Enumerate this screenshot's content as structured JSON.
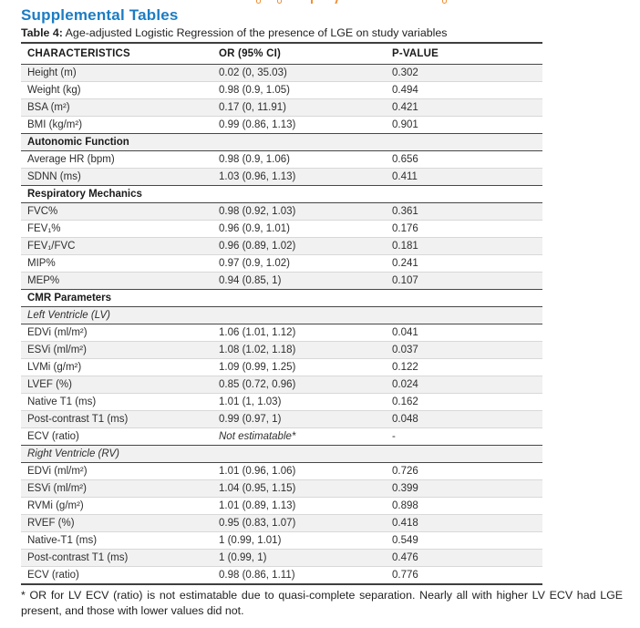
{
  "page": {
    "heading": "Supplemental Tables",
    "caption_label": "Table 4:",
    "caption_text": " Age-adjusted Logistic Regression of the presence of LGE on study variables",
    "footnote": "* OR for LV ECV (ratio) is not estimatable due to quasi-complete separation. Nearly all with higher LV ECV had LGE present, and those with lower values did not."
  },
  "table": {
    "columns": [
      "CHARACTERISTICS",
      "OR (95% CI)",
      "P-VALUE"
    ],
    "rows": [
      {
        "type": "data",
        "label": "Height (m)",
        "or": "0.02 (0, 35.03)",
        "p": "0.302"
      },
      {
        "type": "data",
        "label": "Weight (kg)",
        "or": "0.98 (0.9, 1.05)",
        "p": "0.494"
      },
      {
        "type": "data",
        "label": "BSA (m²)",
        "or": "0.17 (0, 11.91)",
        "p": "0.421"
      },
      {
        "type": "data",
        "label": "BMI (kg/m²)",
        "or": "0.99 (0.86, 1.13)",
        "p": "0.901"
      },
      {
        "type": "section",
        "label": "Autonomic Function"
      },
      {
        "type": "data",
        "label": "Average HR (bpm)",
        "or": "0.98 (0.9, 1.06)",
        "p": "0.656"
      },
      {
        "type": "data",
        "label": "SDNN (ms)",
        "or": "1.03 (0.96, 1.13)",
        "p": "0.411"
      },
      {
        "type": "section",
        "label": "Respiratory Mechanics"
      },
      {
        "type": "data",
        "label": "FVC%",
        "or": "0.98 (0.92, 1.03)",
        "p": "0.361"
      },
      {
        "type": "data",
        "label": "FEV₁%",
        "or": "0.96 (0.9, 1.01)",
        "p": "0.176"
      },
      {
        "type": "data",
        "label": "FEV₁/FVC",
        "or": "0.96 (0.89, 1.02)",
        "p": "0.181"
      },
      {
        "type": "data",
        "label": "MIP%",
        "or": "0.97 (0.9, 1.02)",
        "p": "0.241"
      },
      {
        "type": "data",
        "label": "MEP%",
        "or": "0.94 (0.85, 1)",
        "p": "0.107"
      },
      {
        "type": "section",
        "label": "CMR Parameters"
      },
      {
        "type": "subsection",
        "label": "Left Ventricle (LV)"
      },
      {
        "type": "data",
        "label": "EDVi (ml/m²)",
        "or": "1.06 (1.01, 1.12)",
        "p": "0.041"
      },
      {
        "type": "data",
        "label": "ESVi (ml/m²)",
        "or": "1.08 (1.02, 1.18)",
        "p": "0.037"
      },
      {
        "type": "data",
        "label": "LVMi (g/m²)",
        "or": "1.09 (0.99, 1.25)",
        "p": "0.122"
      },
      {
        "type": "data",
        "label": "LVEF (%)",
        "or": "0.85 (0.72, 0.96)",
        "p": "0.024"
      },
      {
        "type": "data",
        "label": "Native T1 (ms)",
        "or": "1.01 (1, 1.03)",
        "p": "0.162"
      },
      {
        "type": "data",
        "label": "Post-contrast T1 (ms)",
        "or": "0.99 (0.97, 1)",
        "p": "0.048"
      },
      {
        "type": "data",
        "label": "ECV (ratio)",
        "or": "Not estimatable*",
        "or_italic": true,
        "p": "-"
      },
      {
        "type": "subsection",
        "label": "Right Ventricle (RV)"
      },
      {
        "type": "data",
        "label": "EDVi (ml/m²)",
        "or": "1.01 (0.96, 1.06)",
        "p": "0.726"
      },
      {
        "type": "data",
        "label": "ESVi (ml/m²)",
        "or": "1.04 (0.95, 1.15)",
        "p": "0.399"
      },
      {
        "type": "data",
        "label": "RVMi (g/m²)",
        "or": "1.01 (0.89, 1.13)",
        "p": "0.898"
      },
      {
        "type": "data",
        "label": "RVEF (%)",
        "or": "0.95 (0.83, 1.07)",
        "p": "0.418"
      },
      {
        "type": "data",
        "label": "Native-T1 (ms)",
        "or": "1 (0.99, 1.01)",
        "p": "0.549"
      },
      {
        "type": "data",
        "label": "Post-contrast T1 (ms)",
        "or": "1 (0.99, 1)",
        "p": "0.476"
      },
      {
        "type": "data",
        "label": "ECV (ratio)",
        "or": "0.98 (0.86, 1.11)",
        "p": "0.776"
      }
    ]
  },
  "colors": {
    "heading_blue": "#1c7cc3",
    "row_shade_gray": "#f1f1f1",
    "border_dark": "#3f3f3f",
    "border_light": "#d8d8d8",
    "text": "#2e2e2e",
    "clipped_fragment_orange": "#ef8f35"
  }
}
